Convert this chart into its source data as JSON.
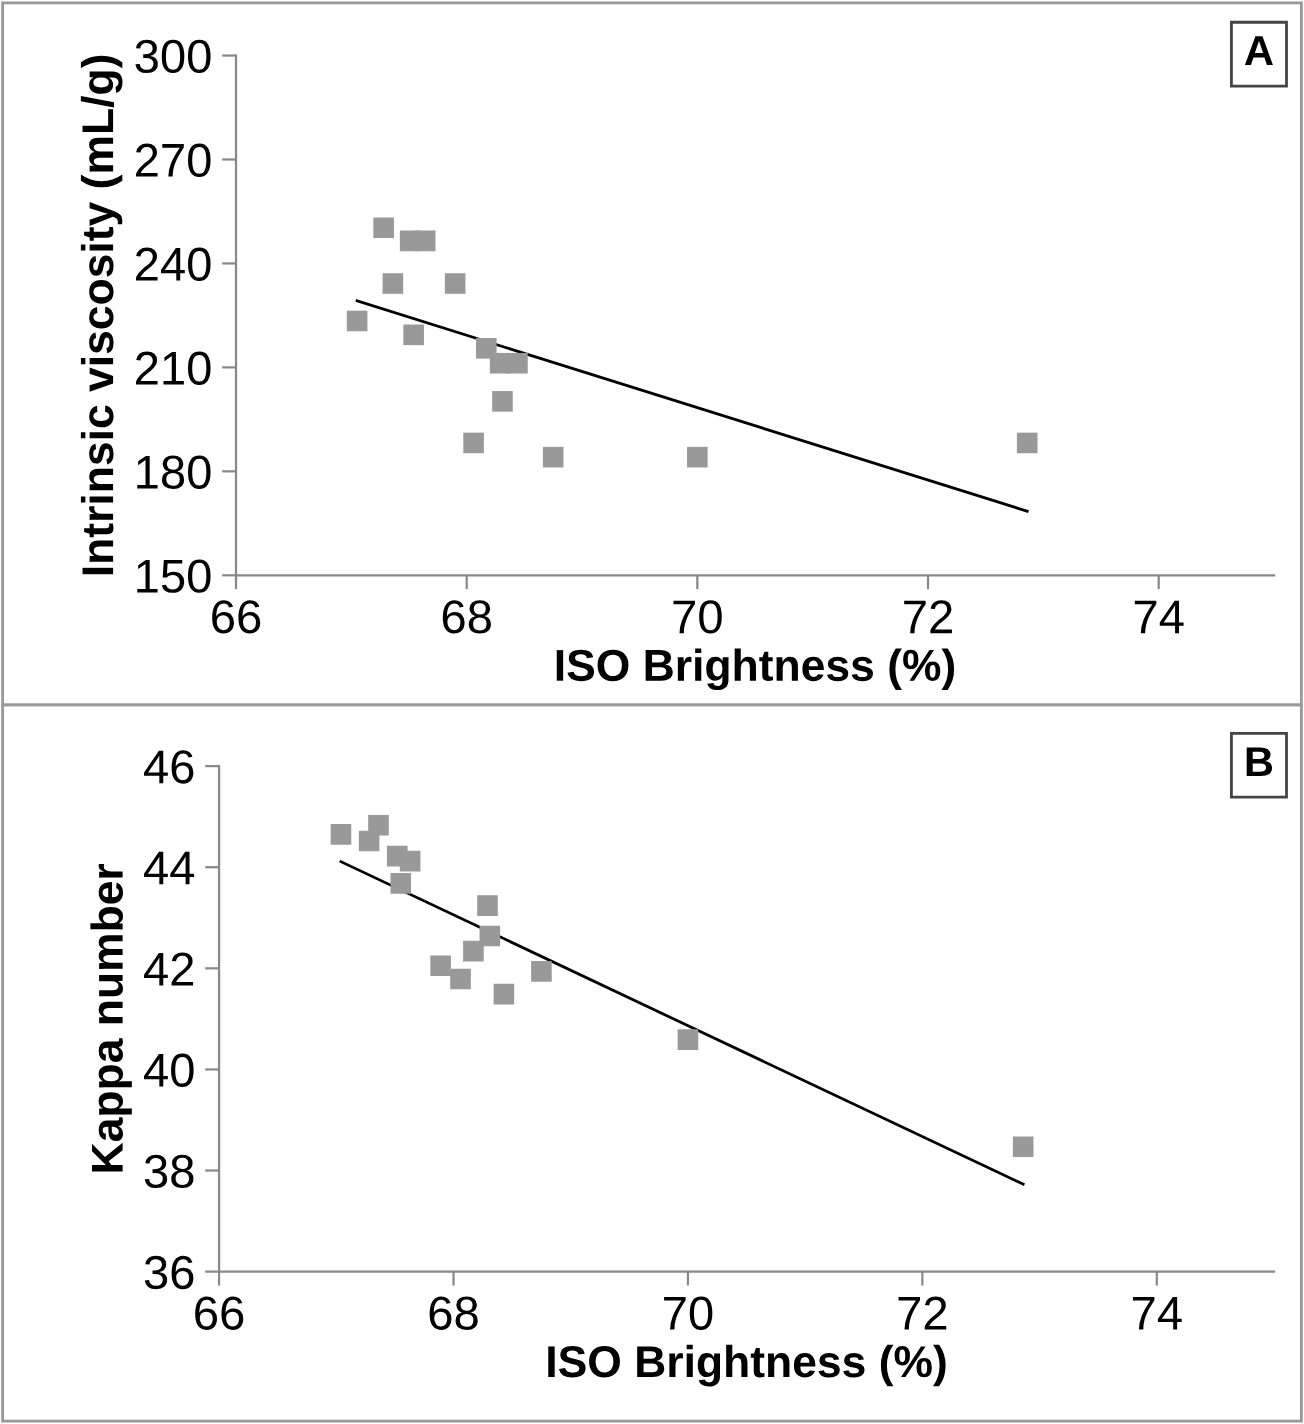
{
  "chart_data": [
    {
      "type": "scatter",
      "xlabel": "ISO Brightness (%)",
      "ylabel": "Intrinsic viscosity (mL/g)",
      "annotations": [
        "A"
      ],
      "xlim": [
        66,
        75
      ],
      "xticks": [
        66,
        68,
        70,
        72,
        74
      ],
      "ylim": [
        150,
        300
      ],
      "yticks": [
        150,
        180,
        210,
        240,
        270,
        300
      ],
      "series": [
        {
          "color": "#999999",
          "marker": "square",
          "x": [
            67.05,
            67.28,
            67.36,
            67.51,
            67.64,
            67.54,
            67.9,
            68.17,
            68.29,
            68.44,
            68.31,
            68.06,
            68.75,
            70.0,
            72.86
          ],
          "values": [
            223.4,
            250.3,
            234.2,
            246.5,
            246.5,
            219.4,
            234.2,
            215.5,
            211.2,
            211.2,
            200.2,
            188.2,
            184.1,
            184.1,
            188.2
          ]
        },
        {
          "type": "line",
          "color": "#000000",
          "marker": "none",
          "x": [
            67.05,
            72.86
          ],
          "values": [
            229.2,
            168.5
          ]
        }
      ]
    },
    {
      "type": "scatter",
      "xlabel": "ISO Brightness (%)",
      "ylabel": "Kappa number",
      "annotations": [
        "B"
      ],
      "xlim": [
        66,
        75
      ],
      "xticks": [
        66,
        68,
        70,
        72,
        74
      ],
      "ylim": [
        36,
        46
      ],
      "yticks": [
        36,
        38,
        40,
        42,
        44,
        46
      ],
      "series": [
        {
          "color": "#999999",
          "marker": "square",
          "x": [
            67.04,
            67.28,
            67.36,
            67.52,
            67.63,
            67.55,
            68.29,
            68.31,
            68.17,
            67.89,
            68.06,
            68.43,
            68.75,
            70.0,
            72.86
          ],
          "values": [
            44.65,
            44.52,
            44.83,
            44.22,
            44.12,
            43.68,
            43.24,
            42.64,
            42.34,
            42.05,
            41.79,
            41.49,
            41.94,
            40.59,
            38.47
          ]
        },
        {
          "type": "line",
          "color": "#000000",
          "marker": "none",
          "x": [
            67.04,
            72.86
          ],
          "values": [
            44.11,
            37.73
          ]
        }
      ]
    }
  ]
}
